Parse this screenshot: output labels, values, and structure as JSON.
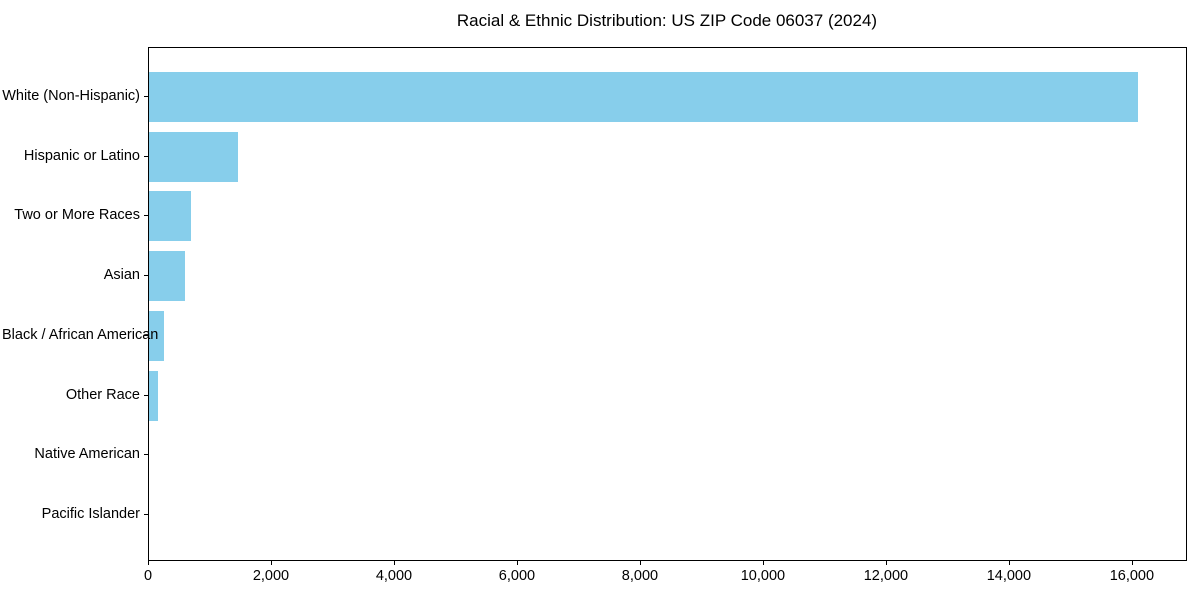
{
  "title": "Racial & Ethnic Distribution: US ZIP Code 06037 (2024)",
  "chart_data": {
    "type": "bar",
    "orientation": "horizontal",
    "title": "Racial & Ethnic Distribution: US ZIP Code 06037 (2024)",
    "categories": [
      "White (Non-Hispanic)",
      "Hispanic or Latino",
      "Two or More Races",
      "Asian",
      "Black / African American",
      "Other Race",
      "Native American",
      "Pacific Islander"
    ],
    "values": [
      16080,
      1440,
      690,
      580,
      240,
      145,
      0,
      0
    ],
    "bar_color": "#87CEEB",
    "xlabel": "",
    "ylabel": "",
    "xlim": [
      0,
      16880
    ],
    "x_ticks": [
      0,
      2000,
      4000,
      6000,
      8000,
      10000,
      12000,
      14000,
      16000
    ],
    "x_tick_labels": [
      "0",
      "2,000",
      "4,000",
      "6,000",
      "8,000",
      "10,000",
      "12,000",
      "14,000",
      "16,000"
    ],
    "grid": false,
    "legend": null
  }
}
